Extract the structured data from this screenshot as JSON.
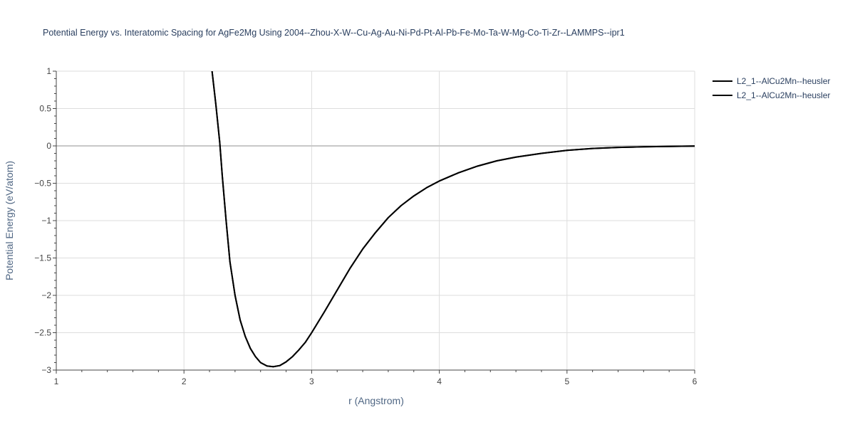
{
  "chart_data": {
    "type": "line",
    "title": "Potential Energy vs. Interatomic Spacing for AgFe2Mg Using 2004--Zhou-X-W--Cu-Ag-Au-Ni-Pd-Pt-Al-Pb-Fe-Mo-Ta-W-Mg-Co-Ti-Zr--LAMMPS--ipr1",
    "xlabel": "r (Angstrom)",
    "ylabel": "Potential Energy (eV/atom)",
    "xlim": [
      1,
      6
    ],
    "ylim": [
      -3,
      1
    ],
    "x_ticks": [
      1,
      2,
      3,
      4,
      5,
      6
    ],
    "y_ticks": [
      1,
      0.5,
      0,
      -0.5,
      -1,
      -1.5,
      -2,
      -2.5,
      -3
    ],
    "x_tick_labels": [
      "1",
      "2",
      "3",
      "4",
      "5",
      "6"
    ],
    "y_tick_labels": [
      "1",
      "0.5",
      "0",
      "−0.5",
      "−1",
      "−1.5",
      "−2",
      "−2.5",
      "−3"
    ],
    "grid": true,
    "legend_position": "top-right",
    "series": [
      {
        "name": "L2_1--AlCu2Mn--heusler",
        "color": "#000000",
        "x": [
          2.22,
          2.25,
          2.28,
          2.3,
          2.33,
          2.36,
          2.4,
          2.44,
          2.48,
          2.52,
          2.56,
          2.6,
          2.65,
          2.7,
          2.75,
          2.8,
          2.85,
          2.9,
          2.95,
          3.0,
          3.1,
          3.2,
          3.3,
          3.4,
          3.5,
          3.6,
          3.7,
          3.8,
          3.9,
          4.0,
          4.15,
          4.3,
          4.45,
          4.6,
          4.8,
          5.0,
          5.2,
          5.4,
          5.6,
          5.8,
          6.0
        ],
        "y": [
          1.0,
          0.55,
          0.05,
          -0.4,
          -1.0,
          -1.55,
          -2.0,
          -2.33,
          -2.55,
          -2.71,
          -2.82,
          -2.9,
          -2.945,
          -2.955,
          -2.94,
          -2.89,
          -2.82,
          -2.73,
          -2.63,
          -2.5,
          -2.22,
          -1.93,
          -1.64,
          -1.38,
          -1.16,
          -0.96,
          -0.8,
          -0.67,
          -0.56,
          -0.47,
          -0.36,
          -0.27,
          -0.2,
          -0.15,
          -0.1,
          -0.06,
          -0.035,
          -0.02,
          -0.012,
          -0.007,
          -0.003
        ]
      },
      {
        "name": "L2_1--AlCu2Mn--heusler",
        "color": "#000000",
        "x": [
          2.22,
          2.25,
          2.28,
          2.3,
          2.33,
          2.36,
          2.4,
          2.44,
          2.48,
          2.52,
          2.56,
          2.6,
          2.65,
          2.7,
          2.75,
          2.8,
          2.85,
          2.9,
          2.95,
          3.0,
          3.1,
          3.2,
          3.3,
          3.4,
          3.5,
          3.6,
          3.7,
          3.8,
          3.9,
          4.0,
          4.15,
          4.3,
          4.45,
          4.6,
          4.8,
          5.0,
          5.2,
          5.4,
          5.6,
          5.8,
          6.0
        ],
        "y": [
          1.0,
          0.55,
          0.05,
          -0.4,
          -1.0,
          -1.55,
          -2.0,
          -2.33,
          -2.55,
          -2.71,
          -2.82,
          -2.9,
          -2.945,
          -2.955,
          -2.94,
          -2.89,
          -2.82,
          -2.73,
          -2.63,
          -2.5,
          -2.22,
          -1.93,
          -1.64,
          -1.38,
          -1.16,
          -0.96,
          -0.8,
          -0.67,
          -0.56,
          -0.47,
          -0.36,
          -0.27,
          -0.2,
          -0.15,
          -0.1,
          -0.06,
          -0.035,
          -0.02,
          -0.012,
          -0.007,
          -0.003
        ]
      }
    ]
  }
}
